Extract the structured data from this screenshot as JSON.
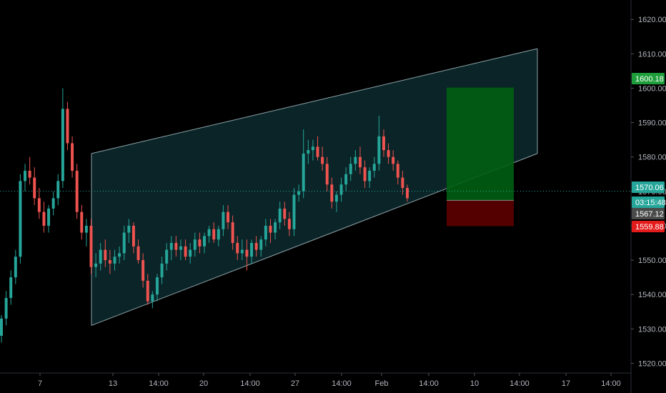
{
  "colors": {
    "background": "#000000",
    "axis_text": "#b2b5be",
    "axis_line": "#2a2e39",
    "up_candle": "#26a69a",
    "down_candle": "#ef5350",
    "channel_line": "#8fa3a8",
    "channel_fill": "#0c2a2e",
    "target_zone": "#005f12",
    "stop_zone": "#5a0000",
    "dotted_line": "#26a69a"
  },
  "chart_data": {
    "type": "candlestick",
    "y_axis": {
      "ylim": [
        1518,
        1624
      ],
      "tick_labels": [
        "1620.00",
        "1610.00",
        "1600.00",
        "1590.00",
        "1580.00",
        "1570.00",
        "1560.00",
        "1550.00",
        "1540.00",
        "1530.00",
        "1520.00"
      ],
      "tick_values": [
        1620,
        1610,
        1600,
        1590,
        1580,
        1570,
        1560,
        1550,
        1540,
        1530,
        1520
      ]
    },
    "x_axis": {
      "tick_labels": [
        "7",
        "13",
        "14:00",
        "20",
        "14:00",
        "27",
        "14:00",
        "Feb",
        "14:00",
        "10",
        "14:00",
        "17",
        "14:00"
      ]
    },
    "price_tags": [
      {
        "label": "1600.18",
        "value": 1600.18,
        "color": "#1e9e3a"
      },
      {
        "label": "1570.06",
        "value": 1570.06,
        "color": "#26a69a"
      },
      {
        "label": "03:15:48",
        "value": 1567.9,
        "color": "#26a69a"
      },
      {
        "label": "1567.12",
        "value": 1566.7,
        "color": "#4a4a4a"
      },
      {
        "label": "1559.88",
        "value": 1559.88,
        "color": "#e31b1b"
      }
    ],
    "current_price": 1570.06,
    "channel": {
      "upper": [
        {
          "t": 0,
          "v": 1581
        },
        {
          "t": 1,
          "v": 1611.5
        }
      ],
      "lower": [
        {
          "t": 0,
          "v": 1531
        },
        {
          "t": 1,
          "v": 1581
        }
      ],
      "upper_line_from": 0.43
    },
    "position": {
      "target": 1600.18,
      "entry": 1567.4,
      "stop": 1559.88
    },
    "candles": [
      [
        1528,
        1534,
        1526,
        1533
      ],
      [
        1533,
        1541,
        1531,
        1539
      ],
      [
        1539,
        1547,
        1537,
        1545
      ],
      [
        1545,
        1553,
        1543,
        1551
      ],
      [
        1551,
        1575,
        1549,
        1573
      ],
      [
        1573,
        1578,
        1570,
        1576
      ],
      [
        1576,
        1580,
        1572,
        1574
      ],
      [
        1574,
        1577,
        1566,
        1568
      ],
      [
        1568,
        1571,
        1562,
        1564
      ],
      [
        1564,
        1567,
        1558,
        1560
      ],
      [
        1560,
        1566,
        1558,
        1565
      ],
      [
        1565,
        1570,
        1563,
        1568
      ],
      [
        1568,
        1575,
        1566,
        1573
      ],
      [
        1573,
        1600,
        1571,
        1594
      ],
      [
        1594,
        1596,
        1582,
        1584
      ],
      [
        1584,
        1586,
        1574,
        1576
      ],
      [
        1576,
        1578,
        1562,
        1564
      ],
      [
        1564,
        1566,
        1556,
        1558
      ],
      [
        1558,
        1562,
        1554,
        1560
      ],
      [
        1560,
        1562,
        1546,
        1548
      ],
      [
        1548,
        1552,
        1545,
        1549
      ],
      [
        1549,
        1555,
        1547,
        1553
      ],
      [
        1553,
        1556,
        1548,
        1550
      ],
      [
        1550,
        1553,
        1546,
        1549
      ],
      [
        1549,
        1553,
        1547,
        1551
      ],
      [
        1551,
        1554,
        1549,
        1552
      ],
      [
        1552,
        1560,
        1550,
        1558
      ],
      [
        1558,
        1562,
        1555,
        1560
      ],
      [
        1560,
        1561,
        1552,
        1554
      ],
      [
        1554,
        1556,
        1549,
        1550
      ],
      [
        1550,
        1552,
        1542,
        1544
      ],
      [
        1544,
        1546,
        1537,
        1538
      ],
      [
        1538,
        1541,
        1536,
        1540
      ],
      [
        1540,
        1546,
        1538,
        1545
      ],
      [
        1545,
        1551,
        1543,
        1549
      ],
      [
        1549,
        1555,
        1547,
        1553
      ],
      [
        1553,
        1557,
        1550,
        1555
      ],
      [
        1555,
        1557,
        1551,
        1553
      ],
      [
        1553,
        1556,
        1550,
        1554
      ],
      [
        1554,
        1556,
        1550,
        1551
      ],
      [
        1551,
        1555,
        1549,
        1553
      ],
      [
        1553,
        1558,
        1551,
        1556
      ],
      [
        1556,
        1558,
        1552,
        1554
      ],
      [
        1554,
        1558,
        1552,
        1557
      ],
      [
        1557,
        1560,
        1555,
        1559
      ],
      [
        1559,
        1561,
        1555,
        1556
      ],
      [
        1556,
        1560,
        1554,
        1559
      ],
      [
        1559,
        1566,
        1557,
        1564
      ],
      [
        1564,
        1566,
        1559,
        1561
      ],
      [
        1561,
        1563,
        1553,
        1555
      ],
      [
        1555,
        1557,
        1550,
        1552
      ],
      [
        1552,
        1556,
        1550,
        1553
      ],
      [
        1553,
        1556,
        1547,
        1551
      ],
      [
        1551,
        1556,
        1549,
        1555
      ],
      [
        1555,
        1557,
        1551,
        1553
      ],
      [
        1553,
        1557,
        1551,
        1556
      ],
      [
        1556,
        1562,
        1554,
        1560
      ],
      [
        1560,
        1562,
        1555,
        1558
      ],
      [
        1558,
        1562,
        1556,
        1561
      ],
      [
        1561,
        1567,
        1559,
        1565
      ],
      [
        1565,
        1567,
        1560,
        1562
      ],
      [
        1562,
        1564,
        1557,
        1559
      ],
      [
        1559,
        1571,
        1557,
        1569
      ],
      [
        1569,
        1572,
        1567,
        1570
      ],
      [
        1570,
        1588,
        1568,
        1581
      ],
      [
        1581,
        1585,
        1578,
        1582
      ],
      [
        1582,
        1585,
        1579,
        1583
      ],
      [
        1583,
        1586,
        1579,
        1580
      ],
      [
        1580,
        1583,
        1576,
        1578
      ],
      [
        1578,
        1580,
        1570,
        1572
      ],
      [
        1572,
        1574,
        1565,
        1567
      ],
      [
        1567,
        1570,
        1564,
        1569
      ],
      [
        1569,
        1574,
        1567,
        1572
      ],
      [
        1572,
        1577,
        1570,
        1575
      ],
      [
        1575,
        1580,
        1573,
        1578
      ],
      [
        1578,
        1582,
        1576,
        1580
      ],
      [
        1580,
        1583,
        1575,
        1577
      ],
      [
        1577,
        1579,
        1571,
        1573
      ],
      [
        1573,
        1577,
        1571,
        1576
      ],
      [
        1576,
        1580,
        1574,
        1578
      ],
      [
        1578,
        1592,
        1576,
        1586
      ],
      [
        1586,
        1588,
        1580,
        1582
      ],
      [
        1582,
        1584,
        1578,
        1580
      ],
      [
        1580,
        1582,
        1576,
        1578
      ],
      [
        1578,
        1579,
        1572,
        1574
      ],
      [
        1574,
        1576,
        1569,
        1571
      ],
      [
        1571,
        1572,
        1567,
        1568
      ]
    ]
  }
}
